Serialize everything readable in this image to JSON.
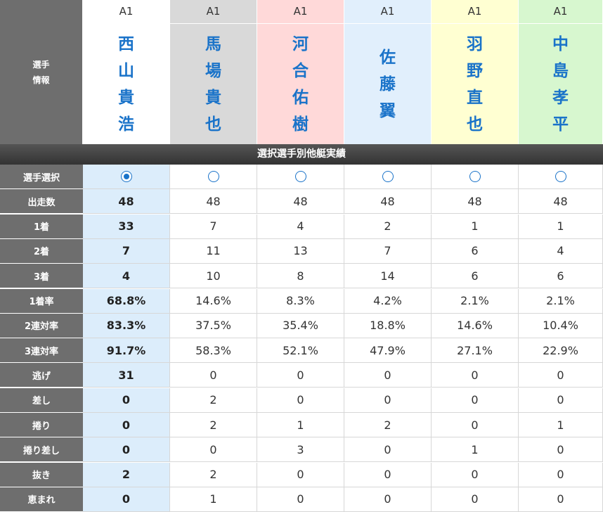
{
  "header": {
    "label_line1": "選手",
    "label_line2": "情報"
  },
  "players": [
    {
      "rank": "A1",
      "name": [
        "西",
        "山",
        "貴",
        "浩"
      ],
      "color": "#ffffff"
    },
    {
      "rank": "A1",
      "name": [
        "馬",
        "場",
        "貴",
        "也"
      ],
      "color": "#d9d9d9"
    },
    {
      "rank": "A1",
      "name": [
        "河",
        "合",
        "佑",
        "樹"
      ],
      "color": "#ffd9d9"
    },
    {
      "rank": "A1",
      "name": [
        "佐",
        "藤",
        "翼"
      ],
      "color": "#e1effc"
    },
    {
      "rank": "A1",
      "name": [
        "羽",
        "野",
        "直",
        "也"
      ],
      "color": "#ffffd2"
    },
    {
      "rank": "A1",
      "name": [
        "中",
        "島",
        "孝",
        "平"
      ],
      "color": "#d7f7cf"
    }
  ],
  "section_title": "選択選手別他艇実績",
  "selected_index": 0,
  "select_row_label": "選手選択",
  "stats": [
    {
      "label": "出走数",
      "values": [
        "48",
        "48",
        "48",
        "48",
        "48",
        "48"
      ]
    },
    {
      "label": "1着",
      "values": [
        "33",
        "7",
        "4",
        "2",
        "1",
        "1"
      ]
    },
    {
      "label": "2着",
      "values": [
        "7",
        "11",
        "13",
        "7",
        "6",
        "4"
      ]
    },
    {
      "label": "3着",
      "values": [
        "4",
        "10",
        "8",
        "14",
        "6",
        "6"
      ]
    },
    {
      "label": "1着率",
      "values": [
        "68.8%",
        "14.6%",
        "8.3%",
        "4.2%",
        "2.1%",
        "2.1%"
      ]
    },
    {
      "label": "2連対率",
      "values": [
        "83.3%",
        "37.5%",
        "35.4%",
        "18.8%",
        "14.6%",
        "10.4%"
      ]
    },
    {
      "label": "3連対率",
      "values": [
        "91.7%",
        "58.3%",
        "52.1%",
        "47.9%",
        "27.1%",
        "22.9%"
      ]
    },
    {
      "label": "逃げ",
      "values": [
        "31",
        "0",
        "0",
        "0",
        "0",
        "0"
      ]
    },
    {
      "label": "差し",
      "values": [
        "0",
        "2",
        "0",
        "0",
        "0",
        "0"
      ]
    },
    {
      "label": "捲り",
      "values": [
        "0",
        "2",
        "1",
        "2",
        "0",
        "1"
      ]
    },
    {
      "label": "捲り差し",
      "values": [
        "0",
        "0",
        "3",
        "0",
        "1",
        "0"
      ]
    },
    {
      "label": "抜き",
      "values": [
        "2",
        "2",
        "0",
        "0",
        "0",
        "0"
      ]
    },
    {
      "label": "恵まれ",
      "values": [
        "0",
        "1",
        "0",
        "0",
        "0",
        "0"
      ]
    }
  ]
}
